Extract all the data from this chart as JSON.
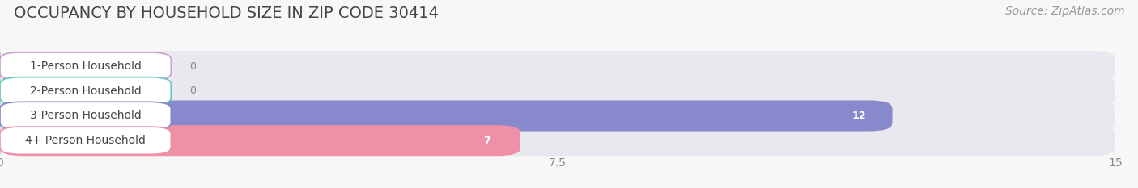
{
  "title": "OCCUPANCY BY HOUSEHOLD SIZE IN ZIP CODE 30414",
  "source": "Source: ZipAtlas.com",
  "categories": [
    "1-Person Household",
    "2-Person Household",
    "3-Person Household",
    "4+ Person Household"
  ],
  "values": [
    0,
    0,
    12,
    7
  ],
  "bar_colors": [
    "#c9a0d0",
    "#5ec8be",
    "#8888cc",
    "#f090a8"
  ],
  "bar_bg_color": "#e8e8ee",
  "xlim": [
    0,
    15
  ],
  "xticks": [
    0,
    7.5,
    15
  ],
  "bg_color": "#f7f7f7",
  "title_fontsize": 14,
  "label_fontsize": 10,
  "value_fontsize": 9,
  "source_fontsize": 10
}
